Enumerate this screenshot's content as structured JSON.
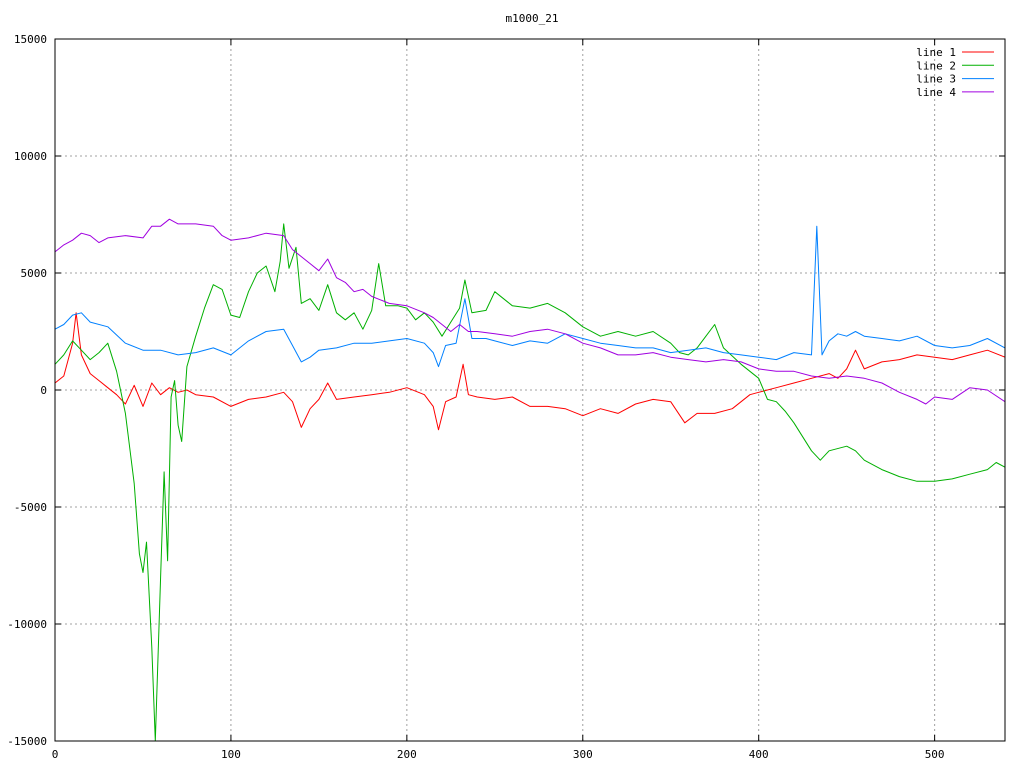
{
  "chart_data": {
    "type": "line",
    "title": "m1000_21",
    "xlabel": "",
    "ylabel": "",
    "xlim": [
      0,
      540
    ],
    "ylim": [
      -15000,
      15000
    ],
    "x_ticks": [
      0,
      100,
      200,
      300,
      400,
      500
    ],
    "y_ticks": [
      -15000,
      -10000,
      -5000,
      0,
      5000,
      10000,
      15000
    ],
    "grid": true,
    "legend_position": "top-right",
    "series": [
      {
        "name": "line 1",
        "color": "#ff0000",
        "points": [
          [
            0,
            300
          ],
          [
            5,
            600
          ],
          [
            10,
            2000
          ],
          [
            12,
            3300
          ],
          [
            15,
            1500
          ],
          [
            20,
            700
          ],
          [
            25,
            400
          ],
          [
            30,
            100
          ],
          [
            35,
            -200
          ],
          [
            40,
            -600
          ],
          [
            45,
            200
          ],
          [
            50,
            -700
          ],
          [
            55,
            300
          ],
          [
            60,
            -200
          ],
          [
            65,
            100
          ],
          [
            70,
            -100
          ],
          [
            75,
            0
          ],
          [
            80,
            -200
          ],
          [
            90,
            -300
          ],
          [
            100,
            -700
          ],
          [
            110,
            -400
          ],
          [
            120,
            -300
          ],
          [
            130,
            -100
          ],
          [
            135,
            -500
          ],
          [
            140,
            -1600
          ],
          [
            145,
            -800
          ],
          [
            150,
            -400
          ],
          [
            155,
            300
          ],
          [
            160,
            -400
          ],
          [
            170,
            -300
          ],
          [
            180,
            -200
          ],
          [
            190,
            -100
          ],
          [
            200,
            100
          ],
          [
            210,
            -200
          ],
          [
            215,
            -700
          ],
          [
            218,
            -1700
          ],
          [
            222,
            -500
          ],
          [
            228,
            -300
          ],
          [
            232,
            1100
          ],
          [
            235,
            -200
          ],
          [
            240,
            -300
          ],
          [
            250,
            -400
          ],
          [
            260,
            -300
          ],
          [
            270,
            -700
          ],
          [
            280,
            -700
          ],
          [
            290,
            -800
          ],
          [
            300,
            -1100
          ],
          [
            310,
            -800
          ],
          [
            320,
            -1000
          ],
          [
            330,
            -600
          ],
          [
            340,
            -400
          ],
          [
            350,
            -500
          ],
          [
            358,
            -1400
          ],
          [
            365,
            -1000
          ],
          [
            375,
            -1000
          ],
          [
            385,
            -800
          ],
          [
            395,
            -200
          ],
          [
            400,
            -100
          ],
          [
            410,
            100
          ],
          [
            420,
            300
          ],
          [
            430,
            500
          ],
          [
            440,
            700
          ],
          [
            445,
            500
          ],
          [
            450,
            900
          ],
          [
            455,
            1700
          ],
          [
            460,
            900
          ],
          [
            470,
            1200
          ],
          [
            480,
            1300
          ],
          [
            490,
            1500
          ],
          [
            500,
            1400
          ],
          [
            510,
            1300
          ],
          [
            520,
            1500
          ],
          [
            530,
            1700
          ],
          [
            540,
            1400
          ]
        ]
      },
      {
        "name": "line 2",
        "color": "#00b000",
        "points": [
          [
            0,
            1100
          ],
          [
            5,
            1500
          ],
          [
            10,
            2100
          ],
          [
            15,
            1700
          ],
          [
            20,
            1300
          ],
          [
            25,
            1600
          ],
          [
            30,
            2000
          ],
          [
            35,
            800
          ],
          [
            40,
            -1000
          ],
          [
            45,
            -4000
          ],
          [
            48,
            -7000
          ],
          [
            50,
            -7800
          ],
          [
            52,
            -6500
          ],
          [
            55,
            -11000
          ],
          [
            57,
            -15000
          ],
          [
            60,
            -8000
          ],
          [
            62,
            -3500
          ],
          [
            64,
            -7300
          ],
          [
            66,
            -300
          ],
          [
            68,
            400
          ],
          [
            70,
            -1500
          ],
          [
            72,
            -2200
          ],
          [
            75,
            1000
          ],
          [
            80,
            2300
          ],
          [
            85,
            3500
          ],
          [
            90,
            4500
          ],
          [
            95,
            4300
          ],
          [
            100,
            3200
          ],
          [
            105,
            3100
          ],
          [
            110,
            4200
          ],
          [
            115,
            5000
          ],
          [
            120,
            5300
          ],
          [
            125,
            4200
          ],
          [
            128,
            5500
          ],
          [
            130,
            7100
          ],
          [
            133,
            5200
          ],
          [
            137,
            6100
          ],
          [
            140,
            3700
          ],
          [
            145,
            3900
          ],
          [
            150,
            3400
          ],
          [
            155,
            4500
          ],
          [
            160,
            3300
          ],
          [
            165,
            3000
          ],
          [
            170,
            3300
          ],
          [
            175,
            2600
          ],
          [
            180,
            3400
          ],
          [
            184,
            5400
          ],
          [
            188,
            3600
          ],
          [
            195,
            3600
          ],
          [
            200,
            3500
          ],
          [
            205,
            3000
          ],
          [
            210,
            3300
          ],
          [
            215,
            2900
          ],
          [
            220,
            2300
          ],
          [
            225,
            2900
          ],
          [
            230,
            3500
          ],
          [
            233,
            4700
          ],
          [
            237,
            3300
          ],
          [
            245,
            3400
          ],
          [
            250,
            4200
          ],
          [
            260,
            3600
          ],
          [
            270,
            3500
          ],
          [
            280,
            3700
          ],
          [
            290,
            3300
          ],
          [
            300,
            2700
          ],
          [
            310,
            2300
          ],
          [
            320,
            2500
          ],
          [
            330,
            2300
          ],
          [
            340,
            2500
          ],
          [
            350,
            2000
          ],
          [
            355,
            1600
          ],
          [
            360,
            1500
          ],
          [
            365,
            1800
          ],
          [
            370,
            2300
          ],
          [
            375,
            2800
          ],
          [
            380,
            1800
          ],
          [
            390,
            1100
          ],
          [
            400,
            500
          ],
          [
            405,
            -400
          ],
          [
            410,
            -500
          ],
          [
            415,
            -900
          ],
          [
            420,
            -1400
          ],
          [
            425,
            -2000
          ],
          [
            430,
            -2600
          ],
          [
            435,
            -3000
          ],
          [
            440,
            -2600
          ],
          [
            450,
            -2400
          ],
          [
            455,
            -2600
          ],
          [
            460,
            -3000
          ],
          [
            470,
            -3400
          ],
          [
            480,
            -3700
          ],
          [
            490,
            -3900
          ],
          [
            500,
            -3900
          ],
          [
            510,
            -3800
          ],
          [
            520,
            -3600
          ],
          [
            530,
            -3400
          ],
          [
            535,
            -3100
          ],
          [
            540,
            -3300
          ]
        ]
      },
      {
        "name": "line 3",
        "color": "#0080ff",
        "points": [
          [
            0,
            2600
          ],
          [
            5,
            2800
          ],
          [
            10,
            3200
          ],
          [
            15,
            3300
          ],
          [
            20,
            2900
          ],
          [
            30,
            2700
          ],
          [
            40,
            2000
          ],
          [
            50,
            1700
          ],
          [
            60,
            1700
          ],
          [
            70,
            1500
          ],
          [
            80,
            1600
          ],
          [
            90,
            1800
          ],
          [
            100,
            1500
          ],
          [
            110,
            2100
          ],
          [
            120,
            2500
          ],
          [
            130,
            2600
          ],
          [
            135,
            1900
          ],
          [
            140,
            1200
          ],
          [
            145,
            1400
          ],
          [
            150,
            1700
          ],
          [
            160,
            1800
          ],
          [
            170,
            2000
          ],
          [
            180,
            2000
          ],
          [
            190,
            2100
          ],
          [
            200,
            2200
          ],
          [
            210,
            2000
          ],
          [
            215,
            1600
          ],
          [
            218,
            1000
          ],
          [
            222,
            1900
          ],
          [
            228,
            2000
          ],
          [
            233,
            3900
          ],
          [
            237,
            2200
          ],
          [
            245,
            2200
          ],
          [
            250,
            2100
          ],
          [
            260,
            1900
          ],
          [
            270,
            2100
          ],
          [
            280,
            2000
          ],
          [
            290,
            2400
          ],
          [
            300,
            2200
          ],
          [
            310,
            2000
          ],
          [
            320,
            1900
          ],
          [
            330,
            1800
          ],
          [
            340,
            1800
          ],
          [
            350,
            1600
          ],
          [
            360,
            1700
          ],
          [
            370,
            1800
          ],
          [
            380,
            1600
          ],
          [
            390,
            1500
          ],
          [
            400,
            1400
          ],
          [
            410,
            1300
          ],
          [
            420,
            1600
          ],
          [
            430,
            1500
          ],
          [
            433,
            7000
          ],
          [
            436,
            1500
          ],
          [
            440,
            2100
          ],
          [
            445,
            2400
          ],
          [
            450,
            2300
          ],
          [
            455,
            2500
          ],
          [
            460,
            2300
          ],
          [
            470,
            2200
          ],
          [
            480,
            2100
          ],
          [
            490,
            2300
          ],
          [
            500,
            1900
          ],
          [
            510,
            1800
          ],
          [
            520,
            1900
          ],
          [
            530,
            2200
          ],
          [
            540,
            1800
          ]
        ]
      },
      {
        "name": "line 4",
        "color": "#a000e0",
        "points": [
          [
            0,
            5900
          ],
          [
            5,
            6200
          ],
          [
            10,
            6400
          ],
          [
            15,
            6700
          ],
          [
            20,
            6600
          ],
          [
            25,
            6300
          ],
          [
            30,
            6500
          ],
          [
            40,
            6600
          ],
          [
            50,
            6500
          ],
          [
            55,
            7000
          ],
          [
            60,
            7000
          ],
          [
            65,
            7300
          ],
          [
            70,
            7100
          ],
          [
            80,
            7100
          ],
          [
            90,
            7000
          ],
          [
            95,
            6600
          ],
          [
            100,
            6400
          ],
          [
            110,
            6500
          ],
          [
            120,
            6700
          ],
          [
            130,
            6600
          ],
          [
            135,
            6000
          ],
          [
            140,
            5700
          ],
          [
            145,
            5400
          ],
          [
            150,
            5100
          ],
          [
            155,
            5600
          ],
          [
            160,
            4800
          ],
          [
            165,
            4600
          ],
          [
            170,
            4200
          ],
          [
            175,
            4300
          ],
          [
            180,
            4000
          ],
          [
            190,
            3700
          ],
          [
            200,
            3600
          ],
          [
            210,
            3300
          ],
          [
            215,
            3100
          ],
          [
            220,
            2800
          ],
          [
            225,
            2500
          ],
          [
            230,
            2800
          ],
          [
            235,
            2500
          ],
          [
            240,
            2500
          ],
          [
            250,
            2400
          ],
          [
            260,
            2300
          ],
          [
            270,
            2500
          ],
          [
            280,
            2600
          ],
          [
            290,
            2400
          ],
          [
            300,
            2000
          ],
          [
            310,
            1800
          ],
          [
            320,
            1500
          ],
          [
            330,
            1500
          ],
          [
            340,
            1600
          ],
          [
            350,
            1400
          ],
          [
            360,
            1300
          ],
          [
            370,
            1200
          ],
          [
            380,
            1300
          ],
          [
            390,
            1200
          ],
          [
            400,
            900
          ],
          [
            410,
            800
          ],
          [
            420,
            800
          ],
          [
            430,
            600
          ],
          [
            440,
            500
          ],
          [
            450,
            600
          ],
          [
            460,
            500
          ],
          [
            470,
            300
          ],
          [
            480,
            -100
          ],
          [
            490,
            -400
          ],
          [
            495,
            -600
          ],
          [
            500,
            -300
          ],
          [
            510,
            -400
          ],
          [
            520,
            100
          ],
          [
            530,
            0
          ],
          [
            540,
            -500
          ]
        ]
      }
    ]
  }
}
